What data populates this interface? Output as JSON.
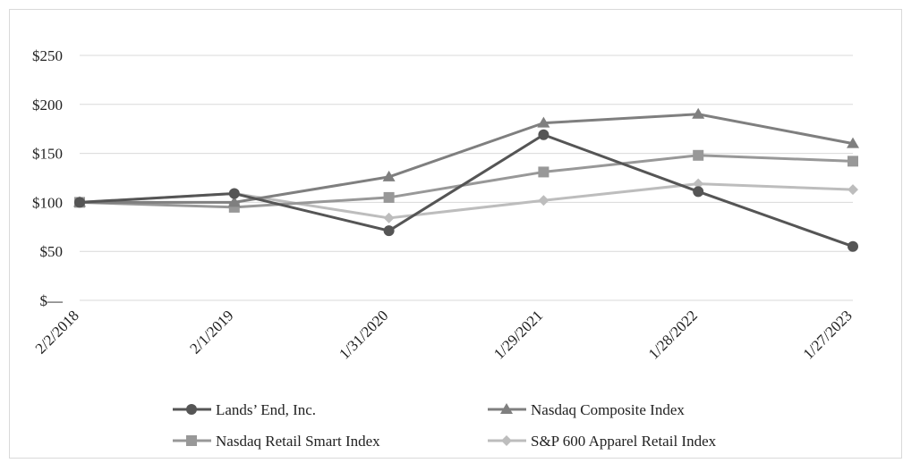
{
  "chart_data": {
    "type": "line",
    "categories": [
      "2/2/2018",
      "2/1/2019",
      "1/31/2020",
      "1/29/2021",
      "1/28/2022",
      "1/27/2023"
    ],
    "ylim": [
      0,
      250
    ],
    "yticks": [
      {
        "value": 0,
        "label": "$—"
      },
      {
        "value": 50,
        "label": "$50"
      },
      {
        "value": 100,
        "label": "$100"
      },
      {
        "value": 150,
        "label": "$150"
      },
      {
        "value": 200,
        "label": "$200"
      },
      {
        "value": 250,
        "label": "$250"
      }
    ],
    "grid": true,
    "legend_position": "bottom",
    "series": [
      {
        "name": "Lands’ End, Inc.",
        "marker": "circle",
        "color": "#555555",
        "values": [
          100,
          109,
          71,
          169,
          111,
          55
        ]
      },
      {
        "name": "Nasdaq Composite Index",
        "marker": "triangle",
        "color": "#7f7f7f",
        "values": [
          100,
          100,
          126,
          181,
          190,
          160
        ]
      },
      {
        "name": "Nasdaq Retail Smart Index",
        "marker": "square",
        "color": "#989898",
        "values": [
          100,
          95,
          105,
          131,
          148,
          142
        ]
      },
      {
        "name": "S&P 600 Apparel Retail Index",
        "marker": "diamond",
        "color": "#bdbdbd",
        "values": [
          100,
          109,
          84,
          102,
          119,
          113
        ]
      }
    ]
  }
}
